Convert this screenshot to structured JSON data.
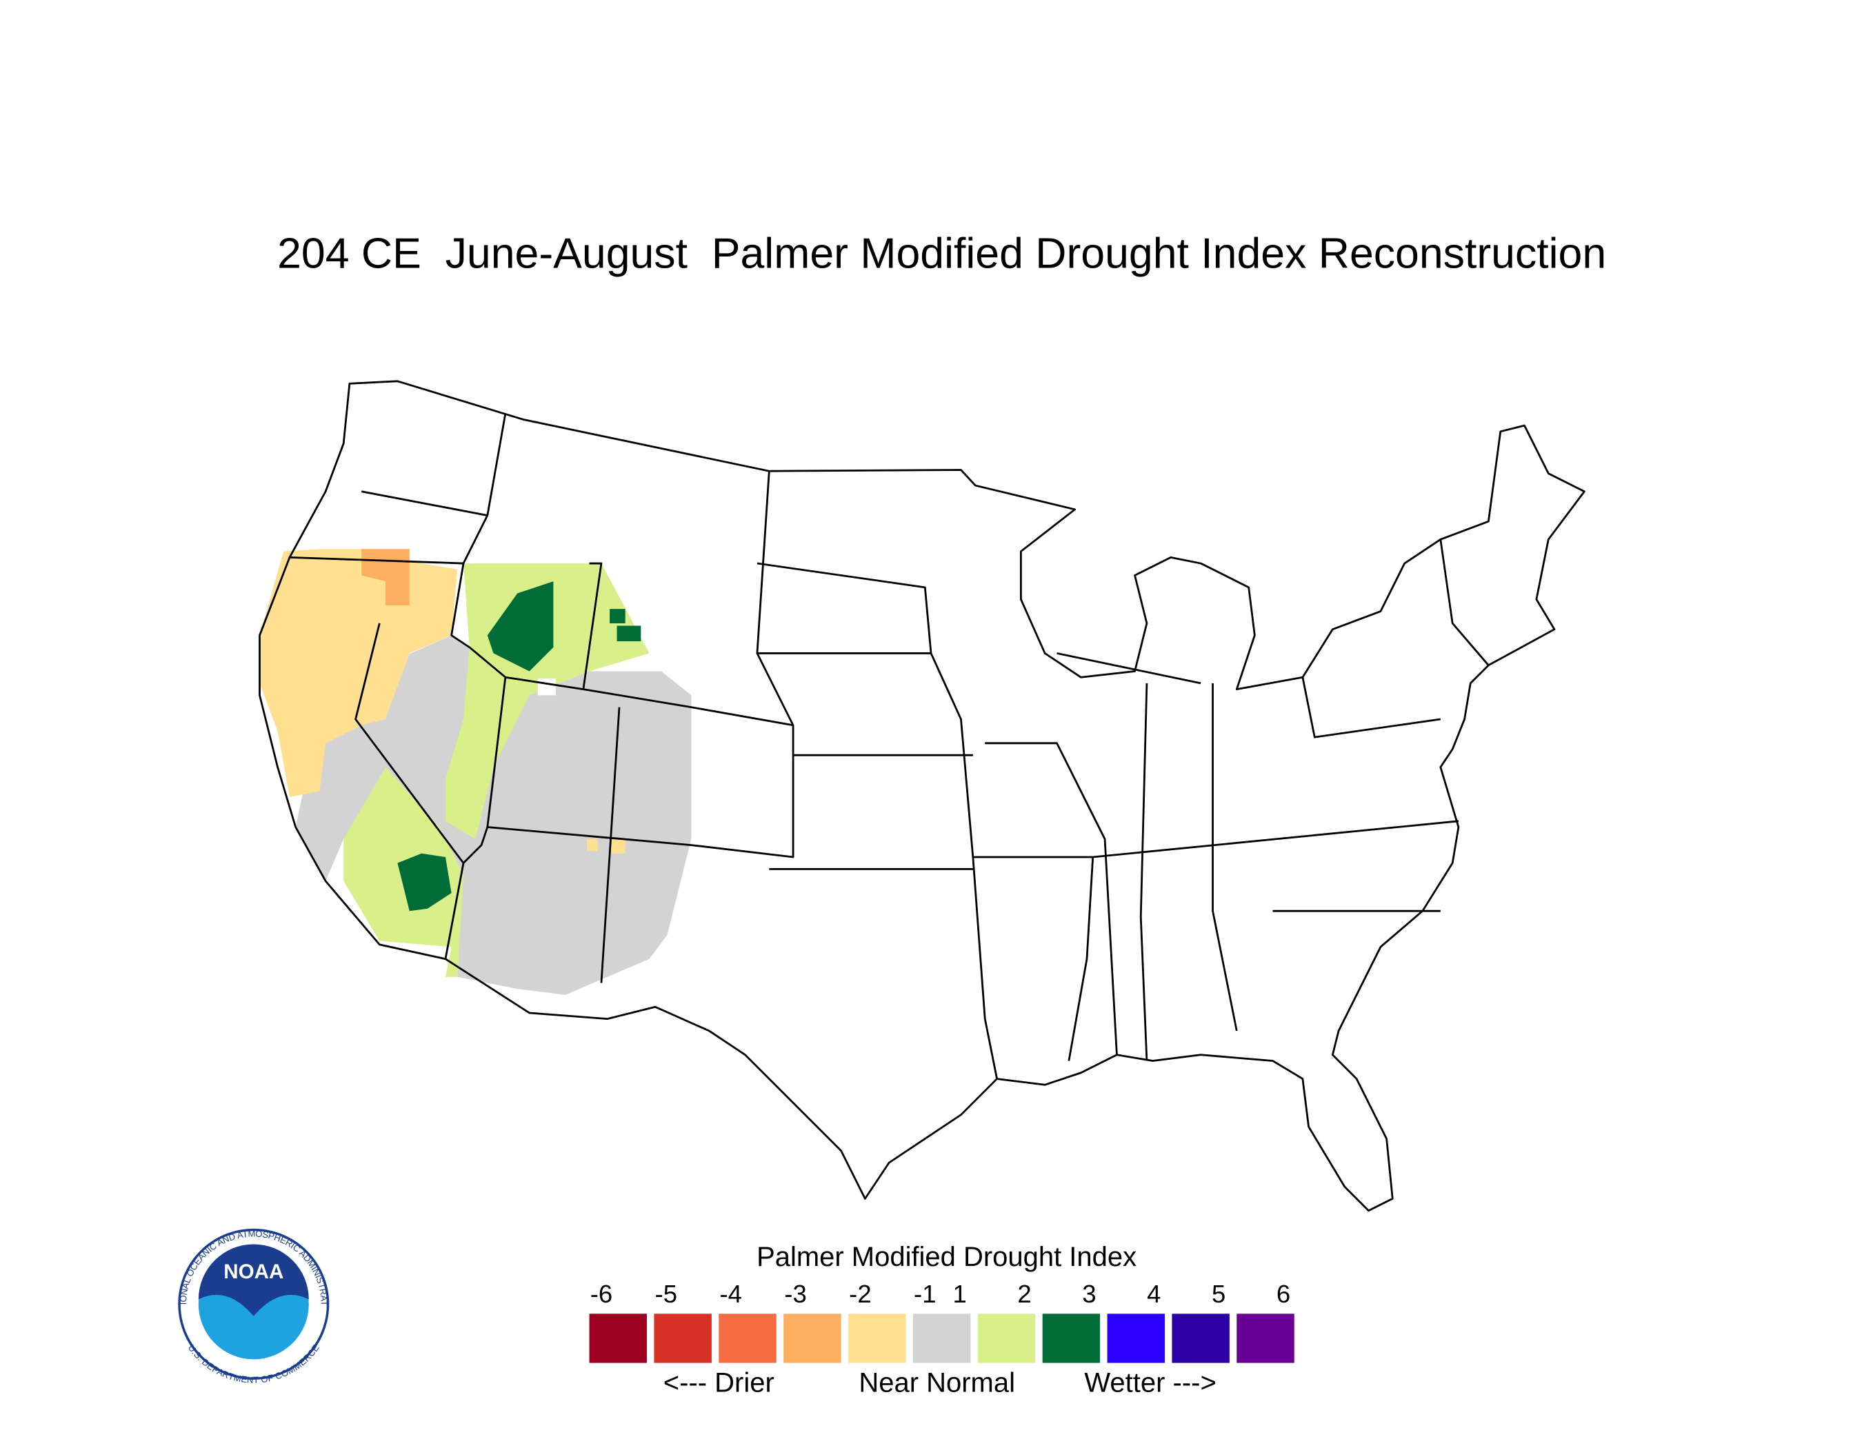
{
  "title": "204 CE  June-August  Palmer Modified Drought Index Reconstruction",
  "legend": {
    "title": "Palmer Modified Drought Index",
    "ticks": [
      -6,
      -5,
      -4,
      -3,
      -2,
      -1,
      1,
      2,
      3,
      4,
      5,
      6
    ],
    "colors": [
      "#9e0021",
      "#d73027",
      "#f46d43",
      "#fdae61",
      "#fee090",
      "#d3d3d3",
      "#d9f08a",
      "#006d38",
      "#2c00ff",
      "#2e00a8",
      "#6a0096"
    ],
    "labels": [
      "<--- Drier",
      "Near Normal",
      "Wetter --->"
    ]
  },
  "logo": {
    "name": "NOAA",
    "ring_top": "NATIONAL OCEANIC AND ATMOSPHERIC ADMINISTRATION",
    "ring_bottom": "U.S. DEPARTMENT OF COMMERCE"
  }
}
